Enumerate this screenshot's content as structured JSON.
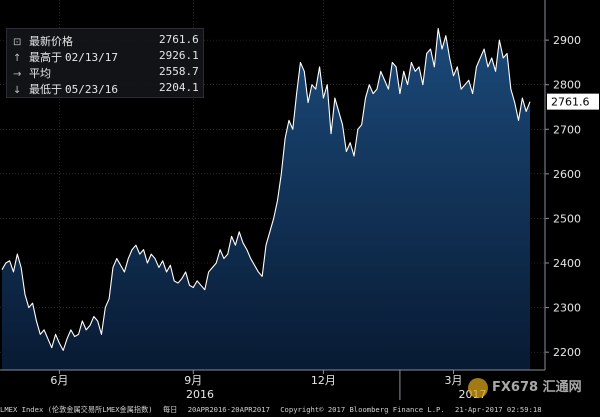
{
  "legend": {
    "last": {
      "label": "最新价格",
      "date": "",
      "value": "2761.6"
    },
    "high": {
      "label": "最高于",
      "date": "02/13/17",
      "value": "2926.1"
    },
    "avg": {
      "label": "平均",
      "date": "",
      "value": "2558.7"
    },
    "low": {
      "label": "最低于",
      "date": "05/23/16",
      "value": "2204.1"
    }
  },
  "last_value_tag": "2761.6",
  "footer": {
    "index": "LMEX Index (伦敦金属交易所LMEX金属指数)",
    "freq": "每日",
    "range": "20APR2016-20APR2017",
    "copyright": "Copyright© 2017 Bloomberg Finance L.P.",
    "timestamp": "21-Apr-2017 02:59:18"
  },
  "watermark": "FX678 汇通网",
  "colors": {
    "line": "#ffffff",
    "fill_top": "#1b4a7a",
    "fill_bottom": "#081a33",
    "background": "#000000",
    "grid": "#3a3f46",
    "last_tag_bg": "#ffffff"
  },
  "chart_data": {
    "type": "area",
    "title": "",
    "xlabel": "",
    "ylabel": "",
    "ylim": [
      2160,
      2990
    ],
    "yticks": [
      2200,
      2300,
      2400,
      2500,
      2600,
      2700,
      2800,
      2900
    ],
    "x_tick_labels": [
      "6月",
      "9月",
      "12月",
      "3月"
    ],
    "year_labels": [
      "2016",
      "2017"
    ],
    "grid": true,
    "legend_position": "top-left",
    "series": [
      {
        "values": [
          2385,
          2400,
          2405,
          2380,
          2420,
          2390,
          2330,
          2300,
          2310,
          2270,
          2240,
          2250,
          2230,
          2210,
          2240,
          2220,
          2204,
          2230,
          2250,
          2235,
          2240,
          2270,
          2250,
          2260,
          2280,
          2270,
          2240,
          2300,
          2320,
          2390,
          2410,
          2395,
          2380,
          2410,
          2430,
          2440,
          2420,
          2430,
          2400,
          2420,
          2410,
          2390,
          2405,
          2380,
          2395,
          2360,
          2355,
          2365,
          2380,
          2350,
          2345,
          2360,
          2350,
          2340,
          2380,
          2390,
          2400,
          2430,
          2410,
          2420,
          2460,
          2440,
          2470,
          2445,
          2430,
          2410,
          2395,
          2380,
          2370,
          2440,
          2470,
          2500,
          2540,
          2600,
          2680,
          2720,
          2700,
          2780,
          2850,
          2830,
          2760,
          2800,
          2790,
          2840,
          2770,
          2800,
          2690,
          2770,
          2740,
          2710,
          2650,
          2670,
          2640,
          2700,
          2710,
          2770,
          2800,
          2780,
          2790,
          2830,
          2810,
          2790,
          2850,
          2840,
          2780,
          2830,
          2800,
          2850,
          2830,
          2840,
          2800,
          2870,
          2880,
          2840,
          2926,
          2880,
          2910,
          2860,
          2820,
          2840,
          2790,
          2800,
          2810,
          2780,
          2840,
          2860,
          2880,
          2840,
          2860,
          2830,
          2900,
          2860,
          2870,
          2790,
          2760,
          2720,
          2770,
          2740,
          2762
        ]
      }
    ]
  }
}
